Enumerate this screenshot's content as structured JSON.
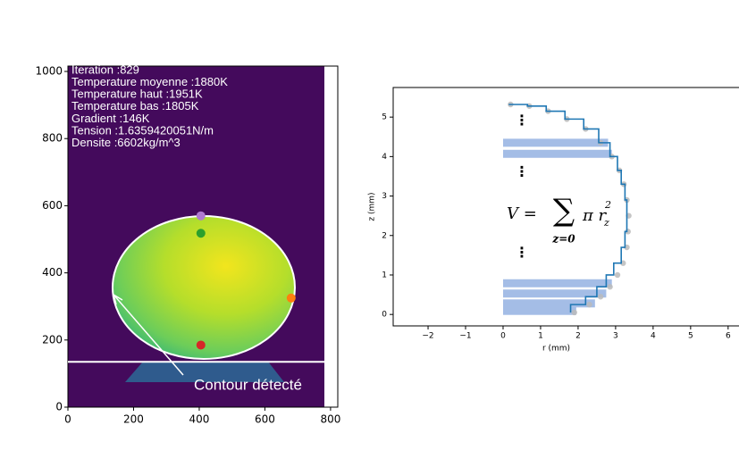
{
  "chart_data": [
    {
      "type": "image",
      "text_lines": [
        "Iteration :829",
        "Temperature moyenne :1880K",
        "Temperature haut :1951K",
        "Temperature bas :1805K",
        "Gradient :146K",
        "Tension :1.6359420051N/m",
        "Densite :6602kg/m^3"
      ],
      "annotation": "Contour détecté",
      "xlim": [
        0,
        822
      ],
      "ylim": [
        0,
        1016
      ],
      "xticks": [
        0,
        200,
        400,
        600,
        800
      ],
      "yticks": [
        0,
        200,
        400,
        600,
        800,
        1000
      ],
      "baseline": 135,
      "points": {
        "x": [
          405,
          405,
          405,
          680
        ],
        "y": [
          570,
          518,
          185,
          325
        ],
        "colors": [
          "#b07ad0",
          "#2ca02c",
          "#d62728",
          "#ff7f0e"
        ]
      }
    },
    {
      "type": "scatter",
      "xlabel": "r (mm)",
      "ylabel": "z (mm)",
      "xlim": [
        -2.93,
        6.29
      ],
      "ylim": [
        -0.29,
        5.75
      ],
      "xticks": [
        {
          "value": -2,
          "label": "−2"
        },
        {
          "value": -1,
          "label": "−1"
        },
        0,
        1,
        2,
        3,
        4,
        5,
        6
      ],
      "yticks": [
        0,
        1,
        2,
        3,
        4,
        5
      ],
      "series": [
        {
          "color": "#bbbbbb",
          "marker": true,
          "x": [
            1.9,
            2.3,
            2.6,
            2.85,
            3.05,
            3.2,
            3.3,
            3.33,
            3.35,
            3.3,
            3.22,
            3.1,
            2.9,
            2.6,
            2.2,
            1.7,
            1.2,
            0.7,
            0.2
          ],
          "y": [
            0.05,
            0.25,
            0.45,
            0.7,
            1.0,
            1.3,
            1.7,
            2.1,
            2.5,
            2.9,
            3.3,
            3.65,
            4.0,
            4.35,
            4.7,
            4.95,
            5.15,
            5.28,
            5.32
          ]
        },
        {
          "color": "#1f77b4",
          "step": true,
          "x": [
            1.8,
            2.2,
            2.5,
            2.75,
            2.95,
            3.15,
            3.25,
            3.3,
            3.3,
            3.25,
            3.15,
            3.05,
            2.85,
            2.55,
            2.15,
            1.65,
            1.15,
            0.65,
            0.15
          ],
          "y": [
            0.05,
            0.25,
            0.45,
            0.7,
            1.0,
            1.3,
            1.7,
            2.1,
            2.5,
            2.9,
            3.3,
            3.65,
            4.0,
            4.35,
            4.7,
            4.95,
            5.15,
            5.28,
            5.32
          ]
        }
      ],
      "bars": {
        "color": "#a4bde6",
        "z": [
          4.35,
          4.07,
          0.79,
          0.53,
          0.28,
          0.09
        ],
        "r": [
          2.8,
          2.9,
          2.9,
          2.75,
          2.45,
          1.95
        ]
      },
      "ellipsis": {
        "text": "⋮",
        "r": 0.5,
        "z": [
          4.9,
          3.6,
          1.55
        ]
      },
      "formula": {
        "lhs": "V =",
        "sum": "∑",
        "term": "π r",
        "sub": "z",
        "sup": "2",
        "under": "z=0"
      }
    }
  ]
}
